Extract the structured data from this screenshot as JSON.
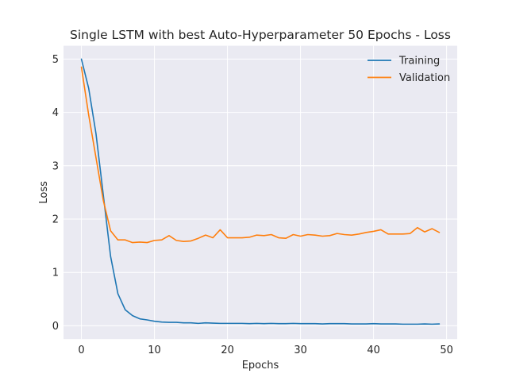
{
  "chart_data": {
    "type": "line",
    "title": "Single LSTM with best Auto-Hyperparameter 50 Epochs - Loss",
    "xlabel": "Epochs",
    "ylabel": "Loss",
    "xlim": [
      -2.45,
      51.45
    ],
    "ylim": [
      -0.25,
      5.25
    ],
    "xticks": [
      0,
      10,
      20,
      30,
      40,
      50
    ],
    "yticks": [
      0,
      1,
      2,
      3,
      4,
      5
    ],
    "grid": true,
    "legend_position": "top-right",
    "series": [
      {
        "name": "Training",
        "color": "#1f77b4",
        "x": [
          0,
          1,
          2,
          3,
          4,
          5,
          6,
          7,
          8,
          9,
          10,
          11,
          12,
          13,
          14,
          15,
          16,
          17,
          18,
          19,
          20,
          21,
          22,
          23,
          24,
          25,
          26,
          27,
          28,
          29,
          30,
          31,
          32,
          33,
          34,
          35,
          36,
          37,
          38,
          39,
          40,
          41,
          42,
          43,
          44,
          45,
          46,
          47,
          48,
          49
        ],
        "values": [
          5.0,
          4.45,
          3.6,
          2.45,
          1.3,
          0.6,
          0.3,
          0.19,
          0.13,
          0.11,
          0.085,
          0.07,
          0.065,
          0.065,
          0.055,
          0.055,
          0.045,
          0.055,
          0.05,
          0.045,
          0.045,
          0.045,
          0.045,
          0.04,
          0.045,
          0.04,
          0.045,
          0.04,
          0.04,
          0.045,
          0.04,
          0.04,
          0.04,
          0.035,
          0.04,
          0.04,
          0.04,
          0.035,
          0.035,
          0.035,
          0.04,
          0.035,
          0.035,
          0.035,
          0.03,
          0.03,
          0.03,
          0.035,
          0.03,
          0.035
        ]
      },
      {
        "name": "Validation",
        "color": "#ff7f0e",
        "x": [
          0,
          1,
          2,
          3,
          4,
          5,
          6,
          7,
          8,
          9,
          10,
          11,
          12,
          13,
          14,
          15,
          16,
          17,
          18,
          19,
          20,
          21,
          22,
          23,
          24,
          25,
          26,
          27,
          28,
          29,
          30,
          31,
          32,
          33,
          34,
          35,
          36,
          37,
          38,
          39,
          40,
          41,
          42,
          43,
          44,
          45,
          46,
          47,
          48,
          49
        ],
        "values": [
          4.85,
          3.95,
          3.15,
          2.35,
          1.78,
          1.61,
          1.61,
          1.56,
          1.57,
          1.56,
          1.6,
          1.61,
          1.69,
          1.6,
          1.58,
          1.59,
          1.64,
          1.7,
          1.65,
          1.8,
          1.65,
          1.65,
          1.65,
          1.66,
          1.7,
          1.69,
          1.71,
          1.65,
          1.64,
          1.71,
          1.68,
          1.71,
          1.7,
          1.68,
          1.69,
          1.73,
          1.71,
          1.7,
          1.72,
          1.75,
          1.77,
          1.8,
          1.72,
          1.72,
          1.72,
          1.73,
          1.84,
          1.76,
          1.82,
          1.75
        ]
      }
    ]
  }
}
